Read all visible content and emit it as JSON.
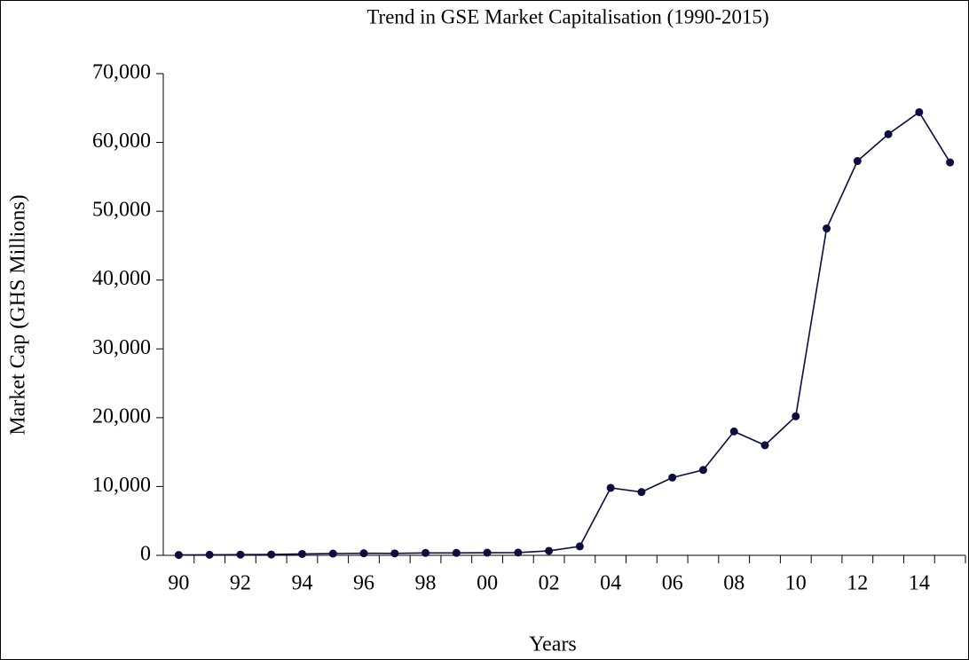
{
  "chart_data": {
    "type": "line",
    "title": "Trend in GSE Market Capitalisation (1990-2015)",
    "x_label": "Years",
    "y_label": "Market Cap (GHS Millions)",
    "categories": [
      "90",
      null,
      "92",
      null,
      "94",
      null,
      "96",
      null,
      "98",
      null,
      "00",
      null,
      "02",
      null,
      "04",
      null,
      "06",
      null,
      "08",
      null,
      "10",
      null,
      "12",
      null,
      "14",
      null
    ],
    "values": [
      50,
      80,
      100,
      120,
      200,
      250,
      300,
      280,
      350,
      350,
      380,
      400,
      650,
      1300,
      9800,
      9200,
      11300,
      12400,
      18000,
      16000,
      20200,
      47500,
      57300,
      61200,
      64400,
      57100
    ],
    "color": "#0d0d40",
    "ylim": [
      0,
      70000
    ],
    "yticks": [
      0,
      {
        "value": 10000,
        "label": "10,000"
      },
      {
        "value": 20000,
        "label": "20,000"
      },
      {
        "value": 30000,
        "label": "30,000"
      },
      {
        "value": 40000,
        "label": "40,000"
      },
      {
        "value": 50000,
        "label": "50,000"
      },
      {
        "value": 60000,
        "label": "60,000"
      },
      {
        "value": 70000,
        "label": "70,000"
      }
    ],
    "grid": false
  }
}
